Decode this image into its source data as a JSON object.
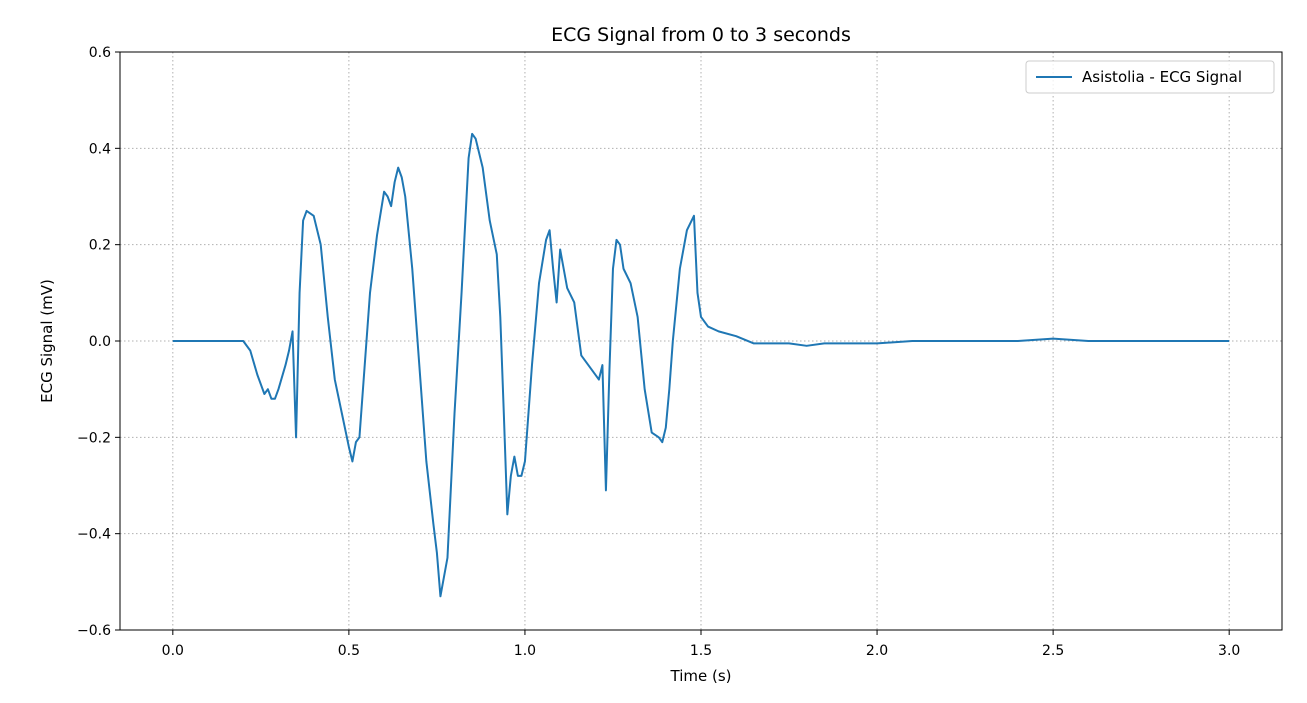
{
  "chart_data": {
    "type": "line",
    "title": "ECG Signal from 0 to 3 seconds",
    "xlabel": "Time (s)",
    "ylabel": "ECG Signal (mV)",
    "xlim": [
      -0.15,
      3.15
    ],
    "ylim": [
      -0.6,
      0.6
    ],
    "xticks": [
      0.0,
      0.5,
      1.0,
      1.5,
      2.0,
      2.5,
      3.0
    ],
    "xtick_labels": [
      "0.0",
      "0.5",
      "1.0",
      "1.5",
      "2.0",
      "2.5",
      "3.0"
    ],
    "yticks": [
      -0.6,
      -0.4,
      -0.2,
      0.0,
      0.2,
      0.4,
      0.6
    ],
    "ytick_labels": [
      "−0.6",
      "−0.4",
      "−0.2",
      "0.0",
      "0.2",
      "0.4",
      "0.6"
    ],
    "grid": true,
    "legend_position": "top-right",
    "series": [
      {
        "name": "Asistolia - ECG Signal",
        "color": "#1f77b4",
        "x": [
          0.0,
          0.03,
          0.06,
          0.09,
          0.12,
          0.15,
          0.18,
          0.2,
          0.22,
          0.24,
          0.26,
          0.27,
          0.28,
          0.29,
          0.3,
          0.32,
          0.33,
          0.34,
          0.35,
          0.36,
          0.37,
          0.38,
          0.4,
          0.42,
          0.44,
          0.46,
          0.48,
          0.5,
          0.51,
          0.52,
          0.53,
          0.54,
          0.56,
          0.58,
          0.6,
          0.61,
          0.62,
          0.63,
          0.64,
          0.65,
          0.66,
          0.68,
          0.7,
          0.72,
          0.74,
          0.75,
          0.76,
          0.78,
          0.8,
          0.82,
          0.84,
          0.85,
          0.86,
          0.88,
          0.9,
          0.92,
          0.93,
          0.94,
          0.95,
          0.96,
          0.97,
          0.98,
          0.99,
          1.0,
          1.02,
          1.04,
          1.06,
          1.07,
          1.08,
          1.09,
          1.1,
          1.11,
          1.12,
          1.14,
          1.16,
          1.18,
          1.2,
          1.21,
          1.22,
          1.23,
          1.24,
          1.25,
          1.26,
          1.27,
          1.28,
          1.3,
          1.32,
          1.34,
          1.36,
          1.38,
          1.39,
          1.4,
          1.41,
          1.42,
          1.44,
          1.46,
          1.48,
          1.49,
          1.5,
          1.52,
          1.55,
          1.6,
          1.65,
          1.7,
          1.75,
          1.8,
          1.85,
          1.9,
          1.95,
          2.0,
          2.1,
          2.2,
          2.3,
          2.4,
          2.5,
          2.6,
          2.7,
          2.8,
          2.9,
          3.0
        ],
        "values": [
          0.0,
          0.0,
          0.0,
          0.0,
          0.0,
          0.0,
          0.0,
          0.0,
          -0.02,
          -0.07,
          -0.11,
          -0.1,
          -0.12,
          -0.12,
          -0.1,
          -0.05,
          -0.02,
          0.02,
          -0.2,
          0.1,
          0.25,
          0.27,
          0.26,
          0.2,
          0.05,
          -0.08,
          -0.15,
          -0.22,
          -0.25,
          -0.21,
          -0.2,
          -0.1,
          0.1,
          0.22,
          0.31,
          0.3,
          0.28,
          0.33,
          0.36,
          0.34,
          0.3,
          0.15,
          -0.05,
          -0.25,
          -0.38,
          -0.44,
          -0.53,
          -0.45,
          -0.15,
          0.1,
          0.38,
          0.43,
          0.42,
          0.36,
          0.25,
          0.18,
          0.05,
          -0.15,
          -0.36,
          -0.28,
          -0.24,
          -0.28,
          -0.28,
          -0.25,
          -0.05,
          0.12,
          0.21,
          0.23,
          0.15,
          0.08,
          0.19,
          0.15,
          0.11,
          0.08,
          -0.03,
          -0.05,
          -0.07,
          -0.08,
          -0.05,
          -0.31,
          -0.06,
          0.15,
          0.21,
          0.2,
          0.15,
          0.12,
          0.05,
          -0.1,
          -0.19,
          -0.2,
          -0.21,
          -0.18,
          -0.1,
          0.0,
          0.15,
          0.23,
          0.26,
          0.1,
          0.05,
          0.03,
          0.02,
          0.01,
          -0.005,
          -0.005,
          -0.005,
          -0.01,
          -0.005,
          -0.005,
          -0.005,
          -0.005,
          0.0,
          0.0,
          0.0,
          0.0,
          0.005,
          0.0,
          0.0,
          0.0,
          0.0,
          0.0
        ]
      }
    ]
  }
}
